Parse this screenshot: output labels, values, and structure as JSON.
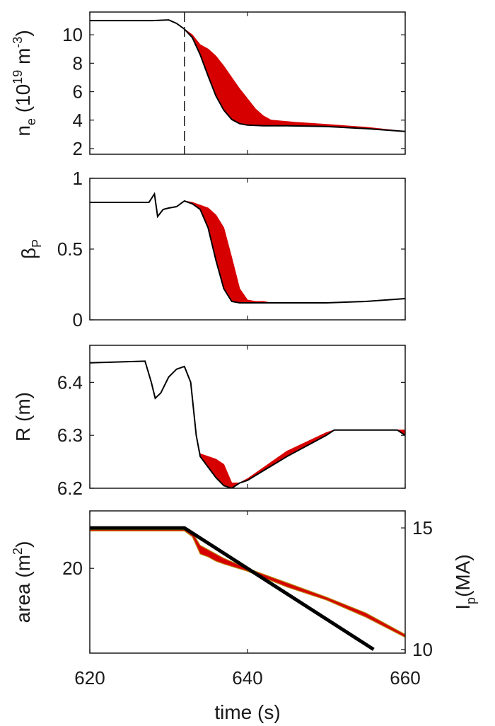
{
  "chart_data": [
    {
      "type": "area",
      "ylabel": {
        "main": "n",
        "sub": "e",
        "open": " (10",
        "sup1": "19",
        "mid": " m",
        "sup2": "-3",
        "close": ")"
      },
      "xlim": [
        620,
        660
      ],
      "ylim": [
        1.6,
        11.6
      ],
      "yticks": [
        2,
        4,
        6,
        8,
        10
      ],
      "grid": false,
      "marker_x": 632,
      "series": [
        {
          "role": "lower",
          "color": "#000000",
          "x": [
            620,
            628,
            630,
            631,
            632,
            633,
            634,
            635,
            636,
            637,
            638,
            639,
            640,
            642,
            645,
            650,
            655,
            660
          ],
          "y": [
            11.0,
            11.0,
            11.05,
            10.8,
            10.4,
            9.8,
            8.6,
            7.1,
            5.7,
            4.7,
            4.05,
            3.75,
            3.65,
            3.6,
            3.6,
            3.55,
            3.4,
            3.2
          ]
        },
        {
          "role": "upper",
          "color": "#d70000",
          "x": [
            620,
            628,
            630,
            631,
            632,
            633,
            634,
            635,
            636,
            637,
            638,
            639,
            640,
            641,
            642,
            643,
            644,
            646,
            650,
            655,
            660
          ],
          "y": [
            11.0,
            11.0,
            11.05,
            10.8,
            10.4,
            10.0,
            9.3,
            9.0,
            8.5,
            7.8,
            7.0,
            6.2,
            5.5,
            4.8,
            4.3,
            4.0,
            3.95,
            3.85,
            3.7,
            3.5,
            3.2
          ]
        }
      ]
    },
    {
      "type": "area",
      "ylabel": {
        "main": "β",
        "sub": "P"
      },
      "xlim": [
        620,
        660
      ],
      "ylim": [
        0,
        1
      ],
      "yticks": [
        0,
        0.5,
        1
      ],
      "grid": false,
      "series": [
        {
          "role": "lower",
          "color": "#000000",
          "x": [
            620,
            627.5,
            628.2,
            628.6,
            629.3,
            630,
            631,
            632,
            633,
            634,
            635,
            636,
            637,
            638,
            639,
            640,
            645,
            650,
            655,
            660
          ],
          "y": [
            0.83,
            0.83,
            0.89,
            0.73,
            0.78,
            0.79,
            0.8,
            0.84,
            0.82,
            0.78,
            0.65,
            0.42,
            0.22,
            0.13,
            0.12,
            0.12,
            0.12,
            0.12,
            0.13,
            0.15
          ]
        },
        {
          "role": "upper",
          "color": "#d70000",
          "x": [
            620,
            627.5,
            628.2,
            628.6,
            629.3,
            630,
            631,
            632,
            633,
            634,
            635,
            636,
            637,
            638,
            639,
            640,
            641,
            642,
            643,
            645,
            650,
            655,
            660
          ],
          "y": [
            0.83,
            0.83,
            0.89,
            0.73,
            0.78,
            0.79,
            0.8,
            0.84,
            0.83,
            0.81,
            0.79,
            0.74,
            0.65,
            0.44,
            0.22,
            0.14,
            0.13,
            0.13,
            0.12,
            0.12,
            0.12,
            0.13,
            0.15
          ]
        }
      ]
    },
    {
      "type": "area",
      "ylabel": {
        "main": "R (m)"
      },
      "xlim": [
        620,
        660
      ],
      "ylim": [
        6.2,
        6.47
      ],
      "yticks": [
        6.2,
        6.3,
        6.4
      ],
      "grid": false,
      "series": [
        {
          "role": "lower",
          "color": "#000000",
          "x": [
            620,
            627,
            627.8,
            628.3,
            629,
            630,
            631,
            632,
            632.8,
            633.5,
            634,
            635,
            636,
            637,
            638,
            639,
            640,
            645,
            650,
            651,
            655,
            659,
            660
          ],
          "y": [
            6.437,
            6.44,
            6.4,
            6.37,
            6.38,
            6.41,
            6.425,
            6.43,
            6.4,
            6.3,
            6.26,
            6.24,
            6.22,
            6.205,
            6.2,
            6.21,
            6.215,
            6.26,
            6.3,
            6.31,
            6.31,
            6.31,
            6.3
          ]
        },
        {
          "role": "upper",
          "color": "#d70000",
          "x": [
            620,
            627,
            627.8,
            628.3,
            629,
            630,
            631,
            632,
            632.8,
            633.5,
            634,
            635,
            636,
            637,
            638,
            639,
            640,
            645,
            650,
            651,
            655,
            659,
            660
          ],
          "y": [
            6.437,
            6.44,
            6.4,
            6.37,
            6.38,
            6.41,
            6.425,
            6.43,
            6.4,
            6.3,
            6.265,
            6.26,
            6.255,
            6.245,
            6.21,
            6.21,
            6.218,
            6.27,
            6.305,
            6.31,
            6.31,
            6.31,
            6.31
          ]
        }
      ]
    },
    {
      "type": "line",
      "xlabel": "time (s)",
      "ylabel": {
        "main": "area (m",
        "sup": "2",
        "close": ")"
      },
      "y2label": {
        "main": "I",
        "sub": "p",
        "rest": "(MA)"
      },
      "xlim": [
        620,
        660
      ],
      "xticks": [
        620,
        640,
        660
      ],
      "ylim": [
        14.1,
        24.0
      ],
      "yticks": [
        20
      ],
      "y2lim": [
        9.85,
        15.7
      ],
      "y2ticks": [
        10,
        15
      ],
      "grid": false,
      "series": [
        {
          "role": "current",
          "axis": "right",
          "color": "#000000",
          "x": [
            620,
            632,
            656
          ],
          "y": [
            15.0,
            15.0,
            10.0
          ]
        },
        {
          "role": "area_lower",
          "axis": "left",
          "color": "#d70000",
          "x": [
            620,
            630,
            632,
            633,
            634,
            635,
            636,
            637,
            640,
            645,
            650,
            655,
            660
          ],
          "y": [
            22.6,
            22.6,
            22.6,
            22.2,
            21.0,
            20.8,
            20.5,
            20.3,
            19.8,
            18.7,
            17.8,
            16.6,
            15.2
          ]
        },
        {
          "role": "area_upper",
          "axis": "left",
          "color": "#d70000",
          "x": [
            620,
            630,
            632,
            633,
            634,
            635,
            636,
            637,
            640,
            645,
            650,
            655,
            660
          ],
          "y": [
            22.7,
            22.7,
            22.7,
            22.5,
            21.6,
            21.3,
            21.0,
            20.7,
            20.0,
            19.0,
            18.0,
            16.9,
            15.4
          ]
        }
      ]
    }
  ]
}
